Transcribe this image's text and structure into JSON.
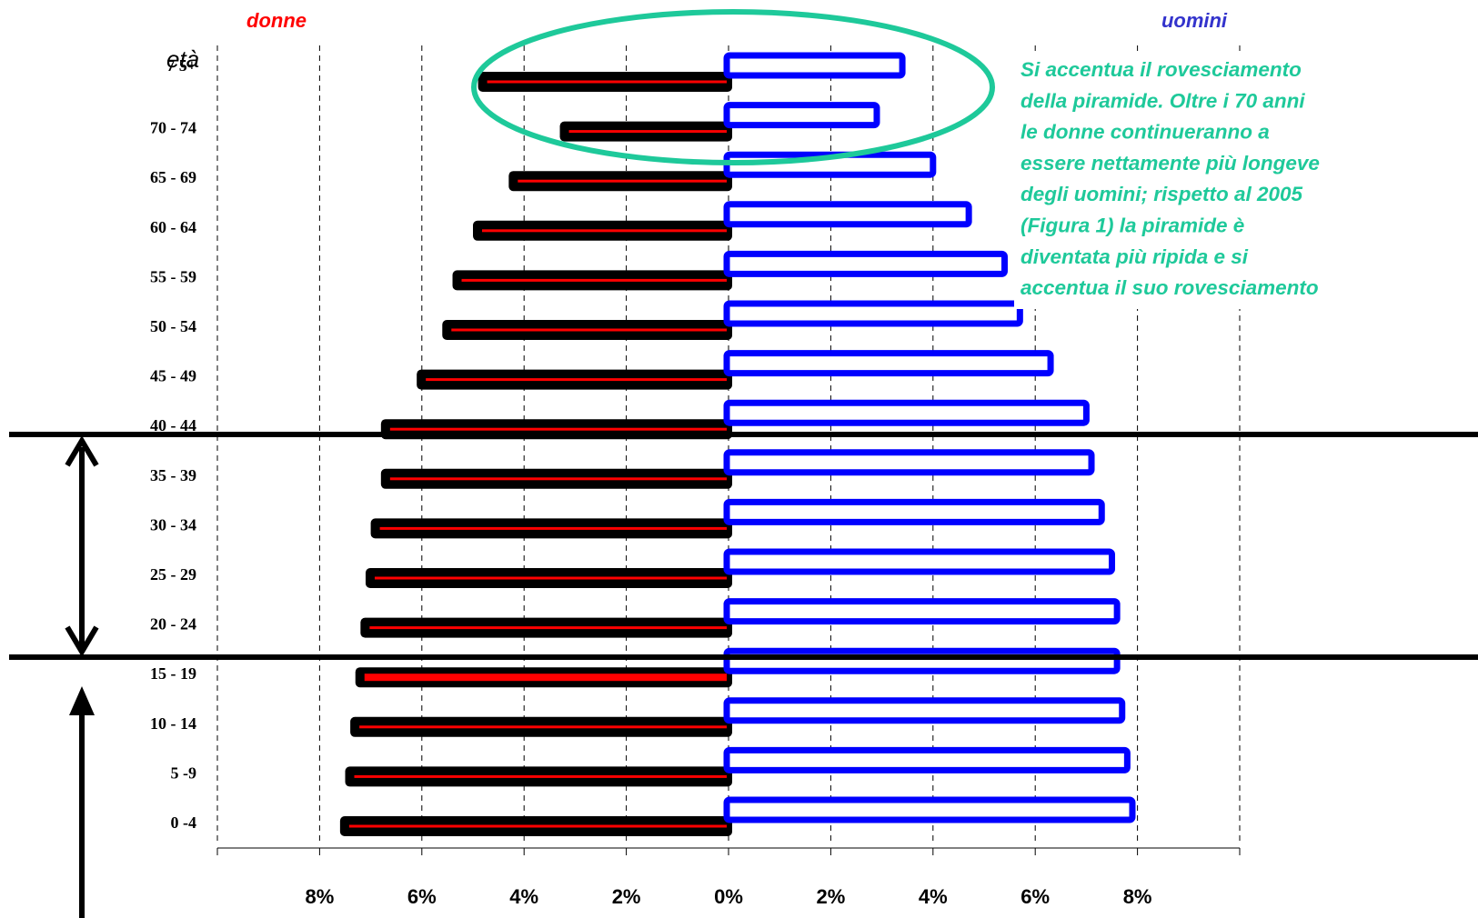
{
  "chart_data": {
    "type": "bar",
    "orientation": "horizontal",
    "left_label": "donne",
    "right_label": "uomini",
    "age_header": "età",
    "categories": [
      "0 -4",
      "5 -9",
      "10 - 14",
      "15 - 19",
      "20 - 24",
      "25 - 29",
      "30 - 34",
      "35 - 39",
      "40 - 44",
      "45 - 49",
      "50 - 54",
      "55 - 59",
      "60 - 64",
      "65 - 69",
      "70 - 74",
      "7 5+"
    ],
    "series": [
      {
        "name": "donne",
        "values": [
          7.6,
          7.5,
          7.4,
          7.3,
          7.2,
          7.1,
          7.0,
          6.8,
          6.8,
          6.1,
          5.6,
          5.4,
          5.0,
          4.3,
          3.3,
          4.9
        ]
      },
      {
        "name": "uomini",
        "values": [
          7.9,
          7.8,
          7.7,
          7.6,
          7.6,
          7.5,
          7.3,
          7.1,
          7.0,
          6.3,
          5.7,
          5.4,
          4.7,
          4.0,
          2.9,
          3.4
        ]
      }
    ],
    "x_tick_labels": [
      "8%",
      "6%",
      "4%",
      "2%",
      "0%",
      "2%",
      "4%",
      "6%",
      "8%"
    ],
    "xlim": [
      -10,
      10
    ],
    "grid": "vertical dashed",
    "annotation": [
      "Si accentua il rovesciamento",
      "della piramide. Oltre i 70 anni",
      "le donne continueranno a",
      "essere nettamente più longeve",
      "degli uomini; rispetto al 2005",
      "(Figura 1) la piramide è",
      "diventata più ripida e si",
      "accentua il suo rovesciamento"
    ],
    "colors": {
      "donne_outline": "#000000",
      "donne_inner": "#ff0000",
      "uomini_outline": "#0000ff",
      "uomini_inner": "#ffffff",
      "annotation": "#1ec99a",
      "left_label": "#ff0000",
      "right_label": "#3333cc"
    }
  }
}
